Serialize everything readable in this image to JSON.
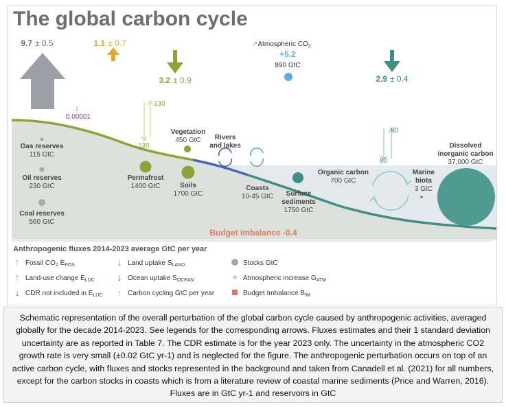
{
  "title": "The global carbon cycle",
  "colors": {
    "fossil": "#9aa0a6",
    "land_use": "#e0a832",
    "land": "#8aa534",
    "ocean": "#3f8f86",
    "atmosphere": "#5aaee0",
    "cdr": "#8a3fa0",
    "imbalance": "#e07a5f",
    "ocean_fill": "#e4e9ee",
    "land_fill": "#dde1db"
  },
  "fluxes": {
    "fossil": {
      "value": "9.7",
      "unc": "± 0.5"
    },
    "land_use": {
      "value": "1.1",
      "unc": "± 0.7"
    },
    "land_uptake": {
      "value": "3.2",
      "unc": "± 0.9"
    },
    "ocean_uptake": {
      "value": "2.9",
      "unc": "± 0.4"
    },
    "atm_increase": {
      "label": "Atmospheric CO",
      "sub": "2",
      "value": "+5.2",
      "stock": "890 GtC"
    },
    "cdr": {
      "value": "0.00001"
    },
    "land_cycling": {
      "up": "130",
      "down": "130"
    },
    "ocean_cycling": {
      "up": "80",
      "down": "80"
    }
  },
  "stocks": {
    "gas": {
      "name": "Gas reserves",
      "value": "115 GtC"
    },
    "oil": {
      "name": "Oil reserves",
      "value": "230 GtC"
    },
    "coal": {
      "name": "Coal reserves",
      "value": "560 GtC"
    },
    "vegetation": {
      "name": "Vegetation",
      "value": "450 GtC"
    },
    "permafrost": {
      "name": "Permafrost",
      "value": "1400 GtC"
    },
    "soils": {
      "name": "Soils",
      "value": "1700 GtC"
    },
    "rivers": {
      "name1": "Rivers",
      "name2": "and lakes"
    },
    "coasts": {
      "name": "Coasts",
      "value": "10-45 GtC"
    },
    "surface_sediments": {
      "name1": "Surface",
      "name2": "sediments",
      "value": "1750 GtC"
    },
    "organic_carbon": {
      "name": "Organic carbon",
      "value": "700 GtC"
    },
    "marine_biota": {
      "name1": "Marine",
      "name2": "biota",
      "value": "3 GtC"
    },
    "dissolved": {
      "name1": "Dissolved",
      "name2": "inorganic carbon",
      "value": "37,000 GtC"
    }
  },
  "budget_imbalance": "Budget imbalance -0.4",
  "legend": {
    "title": "Anthropogenic fluxes 2014-2023 average GtC per year",
    "fossil": {
      "text": "Fossil CO",
      "sub1": "2",
      "mid": " E",
      "sub2": "FOS"
    },
    "land_use": {
      "text": "Land-use change E",
      "sub": "LUC"
    },
    "cdr": {
      "text": "CDR not included in E",
      "sub": "LUC"
    },
    "land_uptake": {
      "text": "Land uptake S",
      "sub": "LAND"
    },
    "ocean_uptake": {
      "text": "Ocean uptake S",
      "sub": "OCEAN"
    },
    "cycling": {
      "text": "Carbon cycling GtC per year"
    },
    "stocks": {
      "text": "Stocks GtC"
    },
    "atm_increase": {
      "text": "Atmospheric increase G",
      "sub": "ATM"
    },
    "imbalance": {
      "text": "Budget Imbalance B",
      "sub": "IM"
    }
  },
  "caption": "Schematic representation of the overall perturbation of the global carbon cycle caused by anthropogenic activities, averaged globally for the decade 2014-2023. See legends for the corresponding arrows. Fluxes estimates and their 1 standard deviation uncertainty are as reported in Table 7. The CDR estimate is for the year 2023 only. The uncertainty in the atmospheric CO2 growth rate is very small (±0.02 GtC yr-1) and is neglected for the figure. The anthropogenic perturbation occurs on top of an active carbon cycle, with fluxes and stocks represented in the background and taken from Canadell et al. (2021) for all numbers, except for the carbon stocks in coasts which is from a literature review of coastal marine sediments (Price and Warren, 2016). Fluxes are in GtC yr-1 and reservoirs in GtC"
}
